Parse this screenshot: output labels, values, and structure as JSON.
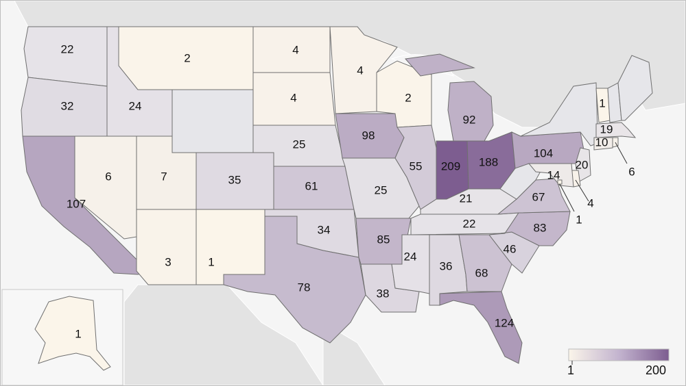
{
  "colors": {
    "low": "#fbf5ea",
    "mid": "#e6e3e8",
    "high": "#7d5d90",
    "background_land": "#e3e3e3",
    "water": "#f5f5f5"
  },
  "scale": {
    "min": 1,
    "max": 209,
    "min_label": "1",
    "max_label": "200"
  },
  "states": [
    {
      "id": "WA",
      "value": 22
    },
    {
      "id": "OR",
      "value": 32
    },
    {
      "id": "CA",
      "value": 107
    },
    {
      "id": "ID",
      "value": 24
    },
    {
      "id": "NV",
      "value": 6
    },
    {
      "id": "MT",
      "value": 2
    },
    {
      "id": "WY",
      "value": null
    },
    {
      "id": "UT",
      "value": 7
    },
    {
      "id": "AZ",
      "value": 3
    },
    {
      "id": "CO",
      "value": 35
    },
    {
      "id": "NM",
      "value": 1
    },
    {
      "id": "ND",
      "value": 4
    },
    {
      "id": "SD",
      "value": 4
    },
    {
      "id": "NE",
      "value": 25
    },
    {
      "id": "KS",
      "value": 61
    },
    {
      "id": "OK",
      "value": 34
    },
    {
      "id": "TX",
      "value": 78
    },
    {
      "id": "MN",
      "value": 4
    },
    {
      "id": "IA",
      "value": 98
    },
    {
      "id": "MO",
      "value": 25
    },
    {
      "id": "AR",
      "value": 85
    },
    {
      "id": "LA",
      "value": 38
    },
    {
      "id": "WI",
      "value": 2
    },
    {
      "id": "IL",
      "value": 55
    },
    {
      "id": "MI",
      "value": 92
    },
    {
      "id": "IN",
      "value": 209
    },
    {
      "id": "OH",
      "value": 188
    },
    {
      "id": "KY",
      "value": 21
    },
    {
      "id": "TN",
      "value": 22
    },
    {
      "id": "MS",
      "value": 24
    },
    {
      "id": "AL",
      "value": 36
    },
    {
      "id": "GA",
      "value": 68
    },
    {
      "id": "FL",
      "value": 124
    },
    {
      "id": "SC",
      "value": 46
    },
    {
      "id": "NC",
      "value": 83
    },
    {
      "id": "VA",
      "value": 67
    },
    {
      "id": "WV",
      "value": null
    },
    {
      "id": "PA",
      "value": 104
    },
    {
      "id": "NY",
      "value": null
    },
    {
      "id": "VT",
      "value": 1
    },
    {
      "id": "NH",
      "value": null
    },
    {
      "id": "ME",
      "value": null
    },
    {
      "id": "MA",
      "value": 19
    },
    {
      "id": "CT",
      "value": 10
    },
    {
      "id": "RI",
      "value": 6
    },
    {
      "id": "NJ",
      "value": 20
    },
    {
      "id": "DE",
      "value": 4
    },
    {
      "id": "MD",
      "value": 14
    },
    {
      "id": "DC",
      "value": 1
    },
    {
      "id": "AK",
      "value": 1
    }
  ],
  "labels": {
    "WA": "22",
    "OR": "32",
    "CA": "107",
    "ID": "24",
    "NV": "6",
    "MT": "2",
    "UT": "7",
    "AZ": "3",
    "CO": "35",
    "NM": "1",
    "ND": "4",
    "SD": "4",
    "NE": "25",
    "KS": "61",
    "OK": "34",
    "TX": "78",
    "MN": "4",
    "IA": "98",
    "MO": "25",
    "AR": "85",
    "LA": "38",
    "WI": "2",
    "IL": "55",
    "MI": "92",
    "IN": "209",
    "OH": "188",
    "KY": "21",
    "TN": "22",
    "MS": "24",
    "AL": "36",
    "GA": "68",
    "FL": "124",
    "SC": "46",
    "NC": "83",
    "VA": "67",
    "PA": "104",
    "VT": "1",
    "MA": "19",
    "CT": "10",
    "RI": "6",
    "NJ": "20",
    "DE": "4",
    "MD": "14",
    "DC": "1",
    "AK": "1"
  }
}
